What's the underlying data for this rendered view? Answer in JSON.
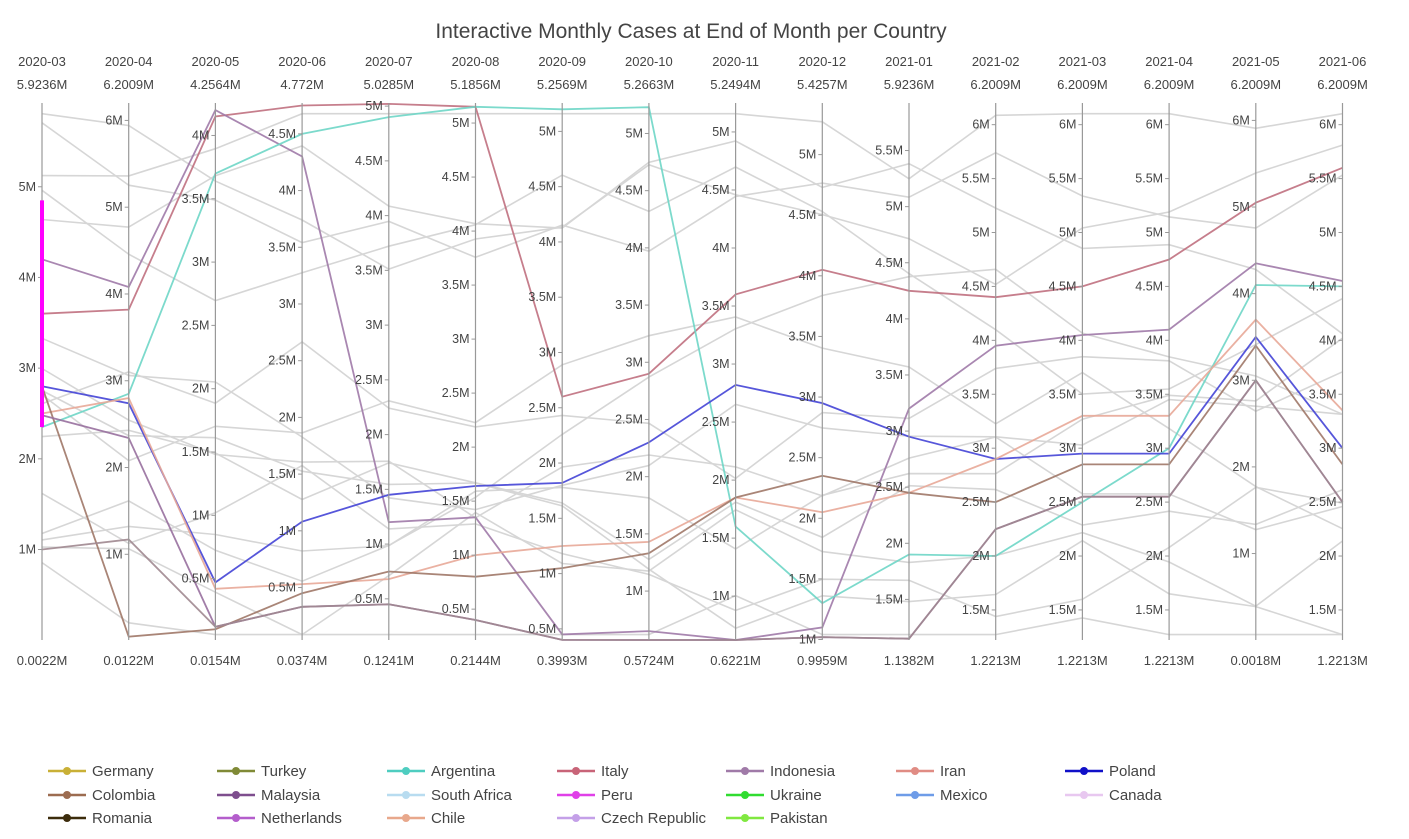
{
  "chart_data": {
    "type": "parallel-coordinates",
    "title": "Interactive Monthly Cases at End of Month per Country",
    "dimensions": [
      {
        "label": "2020-03",
        "max_label": "5.9236M",
        "min_label": "0.0022M",
        "ticks": [
          "1M",
          "2M",
          "3M",
          "4M",
          "5M"
        ]
      },
      {
        "label": "2020-04",
        "max_label": "6.2009M",
        "min_label": "0.0122M",
        "ticks": [
          "1M",
          "2M",
          "3M",
          "4M",
          "5M",
          "6M"
        ]
      },
      {
        "label": "2020-05",
        "max_label": "4.2564M",
        "min_label": "0.0154M",
        "ticks": [
          "0.5M",
          "1M",
          "1.5M",
          "2M",
          "2.5M",
          "3M",
          "3.5M",
          "4M"
        ]
      },
      {
        "label": "2020-06",
        "max_label": "4.772M",
        "min_label": "0.0374M",
        "ticks": [
          "0.5M",
          "1M",
          "1.5M",
          "2M",
          "2.5M",
          "3M",
          "3.5M",
          "4M",
          "4.5M"
        ]
      },
      {
        "label": "2020-07",
        "max_label": "5.0285M",
        "min_label": "0.1241M",
        "ticks": [
          "0.5M",
          "1M",
          "1.5M",
          "2M",
          "2.5M",
          "3M",
          "3.5M",
          "4M",
          "4.5M",
          "5M"
        ]
      },
      {
        "label": "2020-08",
        "max_label": "5.1856M",
        "min_label": "0.2144M",
        "ticks": [
          "0.5M",
          "1M",
          "1.5M",
          "2M",
          "2.5M",
          "3M",
          "3.5M",
          "4M",
          "4.5M",
          "5M"
        ]
      },
      {
        "label": "2020-09",
        "max_label": "5.2569M",
        "min_label": "0.3993M",
        "ticks": [
          "0.5M",
          "1M",
          "1.5M",
          "2M",
          "2.5M",
          "3M",
          "3.5M",
          "4M",
          "4.5M",
          "5M"
        ]
      },
      {
        "label": "2020-10",
        "max_label": "5.2663M",
        "min_label": "0.5724M",
        "ticks": [
          "1M",
          "1.5M",
          "2M",
          "2.5M",
          "3M",
          "3.5M",
          "4M",
          "4.5M",
          "5M"
        ]
      },
      {
        "label": "2020-11",
        "max_label": "5.2494M",
        "min_label": "0.6221M",
        "ticks": [
          "1M",
          "1.5M",
          "2M",
          "2.5M",
          "3M",
          "3.5M",
          "4M",
          "4.5M",
          "5M"
        ]
      },
      {
        "label": "2020-12",
        "max_label": "5.4257M",
        "min_label": "0.9959M",
        "ticks": [
          "1M",
          "1.5M",
          "2M",
          "2.5M",
          "3M",
          "3.5M",
          "4M",
          "4.5M",
          "5M"
        ]
      },
      {
        "label": "2021-01",
        "max_label": "5.9236M",
        "min_label": "1.1382M",
        "ticks": [
          "1.5M",
          "2M",
          "2.5M",
          "3M",
          "3.5M",
          "4M",
          "4.5M",
          "5M",
          "5.5M"
        ]
      },
      {
        "label": "2021-02",
        "max_label": "6.2009M",
        "min_label": "1.2213M",
        "ticks": [
          "1.5M",
          "2M",
          "2.5M",
          "3M",
          "3.5M",
          "4M",
          "4.5M",
          "5M",
          "5.5M",
          "6M"
        ]
      },
      {
        "label": "2021-03",
        "max_label": "6.2009M",
        "min_label": "1.2213M",
        "ticks": [
          "1.5M",
          "2M",
          "2.5M",
          "3M",
          "3.5M",
          "4M",
          "4.5M",
          "5M",
          "5.5M",
          "6M"
        ]
      },
      {
        "label": "2021-04",
        "max_label": "6.2009M",
        "min_label": "1.2213M",
        "ticks": [
          "1.5M",
          "2M",
          "2.5M",
          "3M",
          "3.5M",
          "4M",
          "4.5M",
          "5M",
          "5.5M",
          "6M"
        ]
      },
      {
        "label": "2021-05",
        "max_label": "6.2009M",
        "min_label": "0.0018M",
        "ticks": [
          "1M",
          "2M",
          "3M",
          "4M",
          "5M",
          "6M"
        ]
      },
      {
        "label": "2021-06",
        "max_label": "6.2009M",
        "min_label": "1.2213M",
        "ticks": [
          "1.5M",
          "2M",
          "2.5M",
          "3M",
          "3.5M",
          "4M",
          "4.5M",
          "5M",
          "5.5M",
          "6M"
        ]
      }
    ],
    "units": "cases (millions)",
    "brush": {
      "dimension": "2020-03",
      "range": [
        2.35,
        4.85
      ],
      "color": "#ff00ff"
    },
    "highlighted_lines": [
      {
        "color": "#c07080",
        "values": [
          3.6,
          3.82,
          4.15,
          4.75,
          5.02,
          5.15,
          2.6,
          2.9,
          3.6,
          4.05,
          4.25,
          4.4,
          4.5,
          4.75,
          5.05,
          5.6
        ]
      },
      {
        "color": "#a07aa8",
        "values": [
          4.2,
          4.08,
          4.2,
          4.3,
          1.2,
          1.35,
          0.45,
          0.65,
          0.5,
          1.1,
          3.2,
          3.95,
          4.05,
          4.1,
          4.35,
          4.55
        ]
      },
      {
        "color": "#6ed6c6",
        "values": [
          2.35,
          2.85,
          3.7,
          4.5,
          4.9,
          5.15,
          5.2,
          5.23,
          1.6,
          1.3,
          1.9,
          2.0,
          2.5,
          3.0,
          4.1,
          4.5
        ]
      },
      {
        "color": "#4444d6",
        "values": [
          2.8,
          2.74,
          0.47,
          1.08,
          1.45,
          1.64,
          1.82,
          2.3,
          2.82,
          2.95,
          2.95,
          2.9,
          2.95,
          2.95,
          3.5,
          3.0
        ]
      },
      {
        "color": "#e8a898",
        "values": [
          2.5,
          2.8,
          0.42,
          0.53,
          0.68,
          1.0,
          1.25,
          1.43,
          1.85,
          2.05,
          2.45,
          2.9,
          3.3,
          3.3,
          3.7,
          3.35
        ]
      },
      {
        "color": "#a07868",
        "values": [
          2.8,
          0.05,
          0.1,
          0.45,
          0.75,
          0.8,
          1.05,
          1.33,
          1.85,
          2.35,
          2.45,
          2.5,
          2.85,
          2.85,
          3.4,
          2.85
        ]
      },
      {
        "color": "#98709e",
        "values": [
          2.48,
          2.34,
          0.12,
          0.33,
          0.45,
          0.4,
          0.4,
          0.55,
          0.62,
          1.02,
          1.15,
          2.25,
          2.55,
          2.55,
          3.0,
          2.5
        ]
      },
      {
        "color": "#a08890",
        "values": [
          1.0,
          1.17,
          0.12,
          0.33,
          0.45,
          0.4,
          0.4,
          0.55,
          0.62,
          1.02,
          1.15,
          2.25,
          2.55,
          2.55,
          3.0,
          2.5
        ]
      }
    ],
    "legend": [
      {
        "name": "Germany",
        "color": "#c9b036"
      },
      {
        "name": "Turkey",
        "color": "#808a36"
      },
      {
        "name": "Argentina",
        "color": "#4ecdc0"
      },
      {
        "name": "Italy",
        "color": "#c86478"
      },
      {
        "name": "Indonesia",
        "color": "#a07aa8"
      },
      {
        "name": "Iran",
        "color": "#e08c84"
      },
      {
        "name": "Poland",
        "color": "#1010c8"
      },
      {
        "name": "Colombia",
        "color": "#9c6c50"
      },
      {
        "name": "Malaysia",
        "color": "#7e4e8e"
      },
      {
        "name": "South Africa",
        "color": "#b8dcf0"
      },
      {
        "name": "Peru",
        "color": "#e040e8"
      },
      {
        "name": "Ukraine",
        "color": "#30dc30"
      },
      {
        "name": "Mexico",
        "color": "#6e9ce8"
      },
      {
        "name": "Canada",
        "color": "#e8c8f0"
      },
      {
        "name": "Romania",
        "color": "#3c2c0c"
      },
      {
        "name": "Netherlands",
        "color": "#b45ecc"
      },
      {
        "name": "Chile",
        "color": "#e8a88c"
      },
      {
        "name": "Czech Republic",
        "color": "#c4a0e8"
      },
      {
        "name": "Pakistan",
        "color": "#80e840"
      }
    ],
    "legend_placement": "bottom"
  }
}
